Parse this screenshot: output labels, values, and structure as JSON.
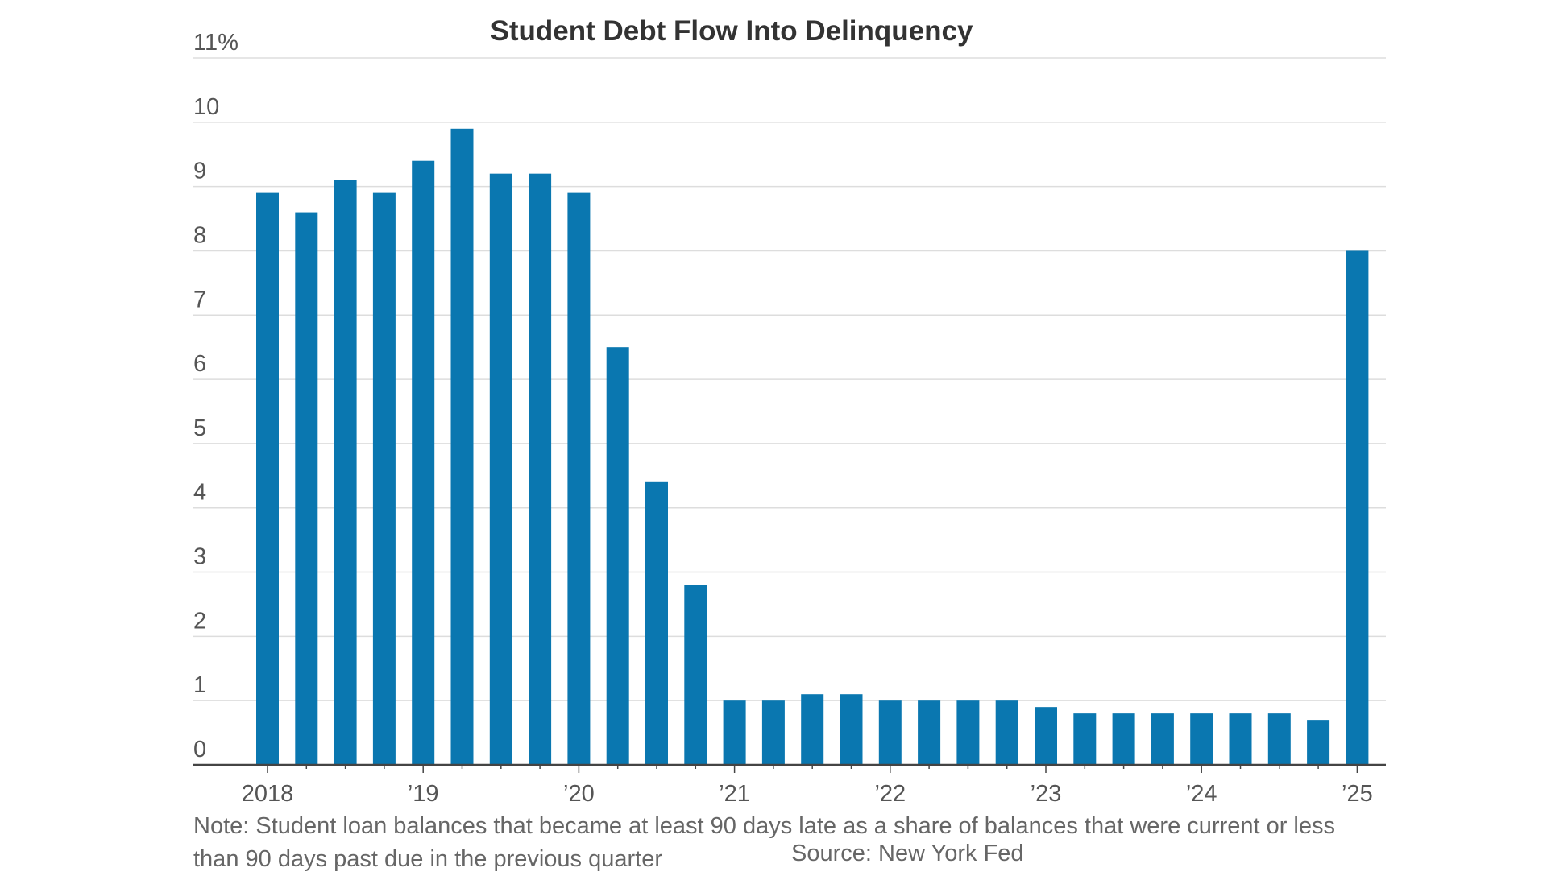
{
  "chart_data": {
    "type": "bar",
    "title": "Student Debt Flow Into Delinquency",
    "xlabel": "",
    "ylabel": "",
    "ylim": [
      0,
      11
    ],
    "y_ticks": [
      "0",
      "1",
      "2",
      "3",
      "4",
      "5",
      "6",
      "7",
      "8",
      "9",
      "10",
      "11%"
    ],
    "x_ticks": [
      "2018",
      "’19",
      "’20",
      "’21",
      "’22",
      "’23",
      "’24",
      "’25"
    ],
    "grid": true,
    "bar_color": "#0a77b0",
    "categories": [
      "2018 Q1",
      "2018 Q2",
      "2018 Q3",
      "2018 Q4",
      "2019 Q1",
      "2019 Q2",
      "2019 Q3",
      "2019 Q4",
      "2020 Q1",
      "2020 Q2",
      "2020 Q3",
      "2020 Q4",
      "2021 Q1",
      "2021 Q2",
      "2021 Q3",
      "2021 Q4",
      "2022 Q1",
      "2022 Q2",
      "2022 Q3",
      "2022 Q4",
      "2023 Q1",
      "2023 Q2",
      "2023 Q3",
      "2023 Q4",
      "2024 Q1",
      "2024 Q2",
      "2024 Q3",
      "2024 Q4",
      "2025 Q1"
    ],
    "values": [
      8.9,
      8.6,
      9.1,
      8.9,
      9.4,
      9.9,
      9.2,
      9.2,
      8.9,
      6.5,
      4.4,
      2.8,
      1.0,
      1.0,
      1.1,
      1.1,
      1.0,
      1.0,
      1.0,
      1.0,
      0.9,
      0.8,
      0.8,
      0.8,
      0.8,
      0.8,
      0.8,
      0.7,
      8.0
    ]
  },
  "footer": {
    "note": "Note: Student loan balances that became at least 90 days late as a share of balances that were current or less than 90 days past due in the previous quarter",
    "source": "Source: New York Fed"
  }
}
